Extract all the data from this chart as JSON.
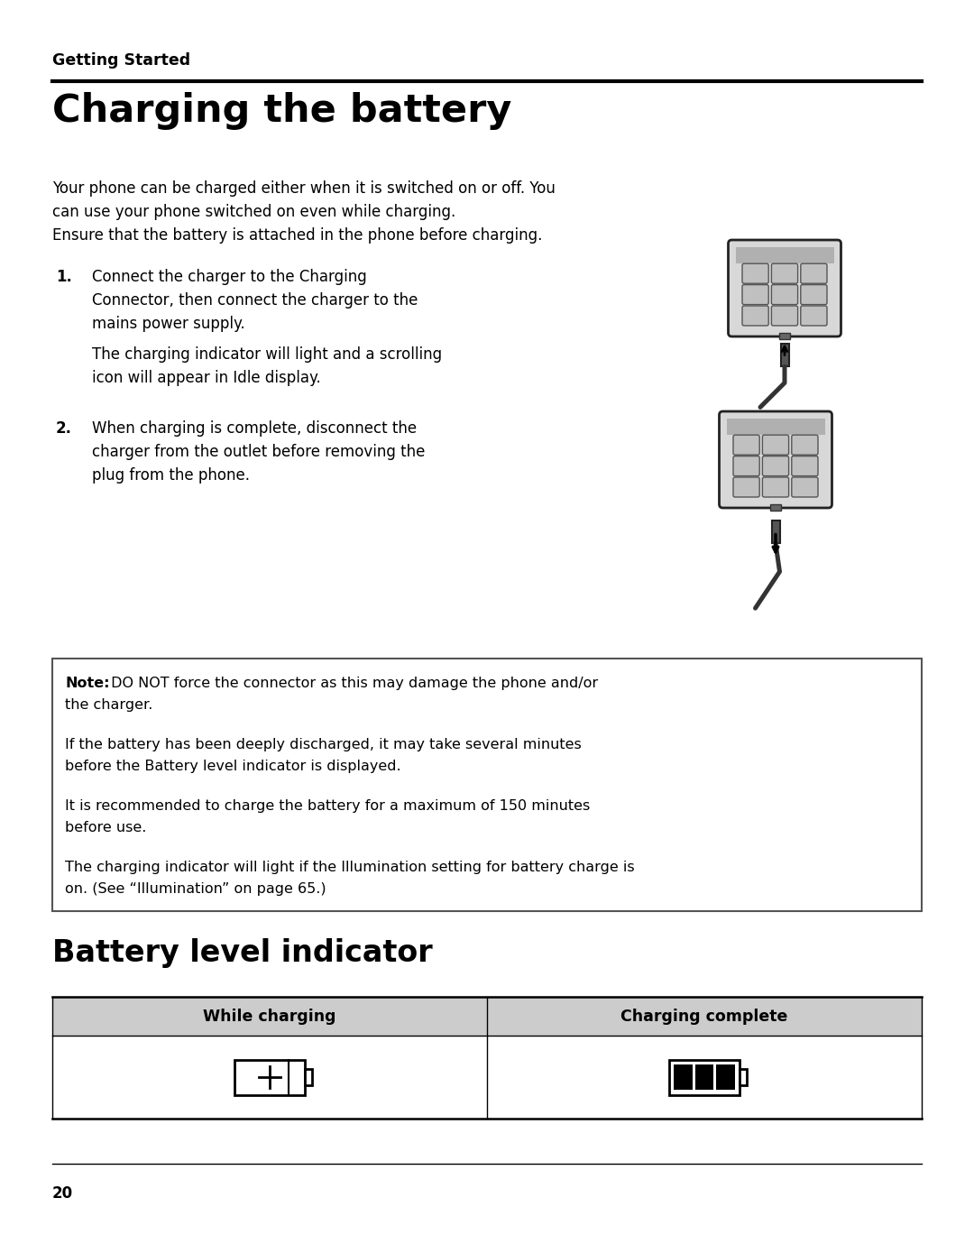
{
  "page_number": "20",
  "section_header": "Getting Started",
  "title": "Charging the battery",
  "intro_line1": "Your phone can be charged either when it is switched on or off. You",
  "intro_line2": "can use your phone switched on even while charging.",
  "intro_line3": "Ensure that the battery is attached in the phone before charging.",
  "step1_number": "1.",
  "step1_para1_line1": "Connect the charger to the Charging",
  "step1_para1_line2": "Connector, then connect the charger to the",
  "step1_para1_line3": "mains power supply.",
  "step1_para2_line1": "The charging indicator will light and a scrolling",
  "step1_para2_line2": "icon will appear in Idle display.",
  "step2_number": "2.",
  "step2_line1": "When charging is complete, disconnect the",
  "step2_line2": "charger from the outlet before removing the",
  "step2_line3": "plug from the phone.",
  "note_bold": "Note:",
  "note_rest1": " DO NOT force the connector as this may damage the phone and/or",
  "note_rest1b": "the charger.",
  "note_para2_line1": "If the battery has been deeply discharged, it may take several minutes",
  "note_para2_line2": "before the Battery level indicator is displayed.",
  "note_para3_line1": "It is recommended to charge the battery for a maximum of 150 minutes",
  "note_para3_line2": "before use.",
  "note_para4_line1": "The charging indicator will light if the Illumination setting for battery charge is",
  "note_para4_line2": "on. (See “Illumination” on page 65.)",
  "section2_title": "Battery level indicator",
  "table_header1": "While charging",
  "table_header2": "Charging complete",
  "bg_color": "#ffffff",
  "table_header_bg": "#cccccc",
  "text_color": "#000000"
}
